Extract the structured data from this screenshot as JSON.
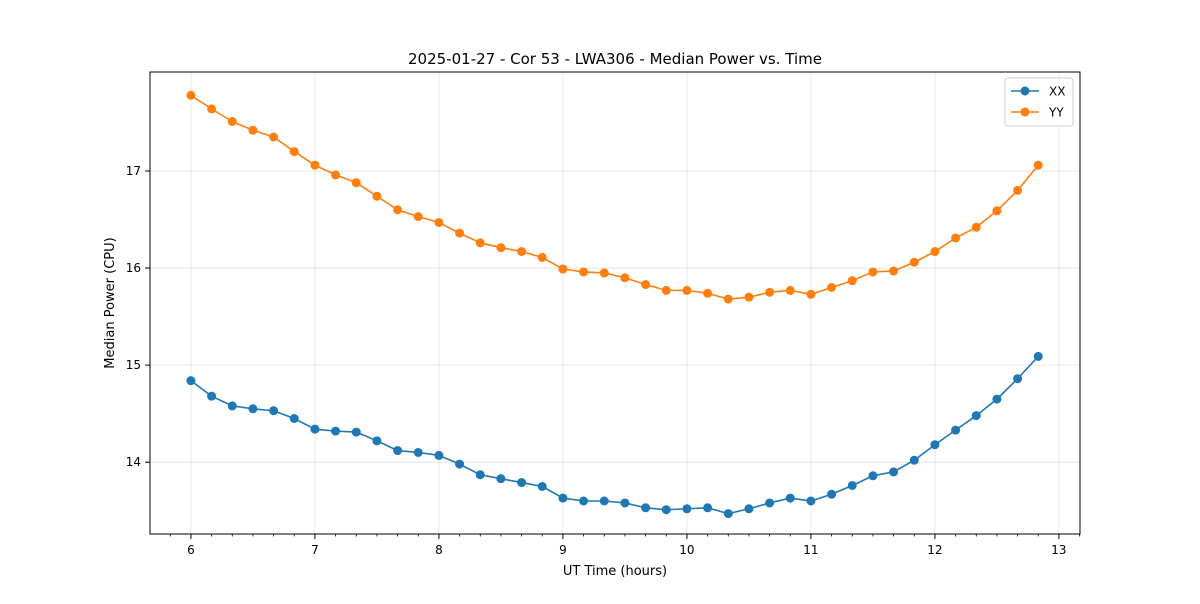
{
  "chart_data": {
    "type": "line",
    "title": "2025-01-27 - Cor 53 - LWA306 - Median Power vs. Time",
    "xlabel": "UT Time (hours)",
    "ylabel": "Median Power (CPU)",
    "xlim": [
      5.67,
      13.17
    ],
    "ylim": [
      13.26,
      18.02
    ],
    "xticks": [
      6,
      7,
      8,
      9,
      10,
      11,
      12,
      13
    ],
    "yticks": [
      14,
      15,
      16,
      17
    ],
    "grid": true,
    "legend_position": "top-right",
    "x": [
      6.0,
      6.1667,
      6.3333,
      6.5,
      6.6667,
      6.8333,
      7.0,
      7.1667,
      7.3333,
      7.5,
      7.6667,
      7.8333,
      8.0,
      8.1667,
      8.3333,
      8.5,
      8.6667,
      8.8333,
      9.0,
      9.1667,
      9.3333,
      9.5,
      9.6667,
      9.8333,
      10.0,
      10.1667,
      10.3333,
      10.5,
      10.6667,
      10.8333,
      11.0,
      11.1667,
      11.3333,
      11.5,
      11.6667,
      11.8333,
      12.0,
      12.1667,
      12.3333,
      12.5,
      12.6667,
      12.8333
    ],
    "series": [
      {
        "name": "XX",
        "color": "#1f77b4",
        "values": [
          14.84,
          14.68,
          14.58,
          14.55,
          14.53,
          14.45,
          14.34,
          14.32,
          14.31,
          14.22,
          14.12,
          14.1,
          14.07,
          13.98,
          13.87,
          13.83,
          13.79,
          13.75,
          13.63,
          13.6,
          13.6,
          13.58,
          13.53,
          13.51,
          13.52,
          13.53,
          13.47,
          13.52,
          13.58,
          13.63,
          13.6,
          13.67,
          13.76,
          13.86,
          13.9,
          14.02,
          14.18,
          14.33,
          14.48,
          14.65,
          14.86,
          15.09
        ]
      },
      {
        "name": "YY",
        "color": "#ff7f0e",
        "values": [
          17.78,
          17.64,
          17.51,
          17.42,
          17.35,
          17.2,
          17.06,
          16.96,
          16.88,
          16.74,
          16.6,
          16.53,
          16.47,
          16.36,
          16.26,
          16.21,
          16.17,
          16.11,
          15.99,
          15.96,
          15.95,
          15.9,
          15.83,
          15.77,
          15.77,
          15.74,
          15.68,
          15.7,
          15.75,
          15.77,
          15.73,
          15.8,
          15.87,
          15.96,
          15.97,
          16.06,
          16.17,
          16.31,
          16.42,
          16.59,
          16.8,
          17.06
        ]
      }
    ]
  }
}
